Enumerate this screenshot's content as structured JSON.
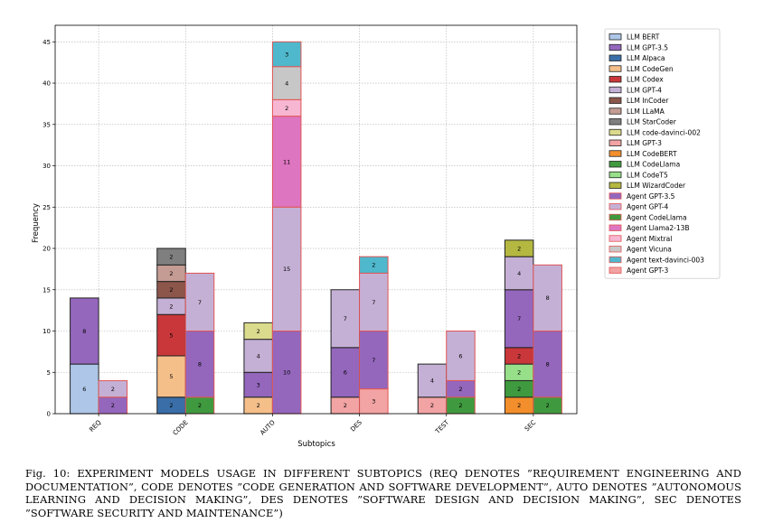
{
  "caption": "Fig. 10: EXPERIMENT MODELS USAGE IN DIFFERENT SUBTOPICS (REQ DENOTES ”REQUIREMENT ENGINEERING AND DOCUMENTATION”, CODE DENOTES ”CODE GENERATION AND SOFTWARE DEVELOPMENT”, AUTO DENOTES ”AUTONOMOUS LEARNING AND DECISION MAKING”, DES DENOTES ”SOFTWARE DESIGN AND DECISION MAKING”, SEC DENOTES ”SOFTWARE SECURITY AND MAINTENANCE”)",
  "chart_data": {
    "type": "bar",
    "stacked": true,
    "grouped": true,
    "xlabel": "Subtopics",
    "ylabel": "Frequency",
    "ylim": [
      0,
      47
    ],
    "yticks": [
      0,
      5,
      10,
      15,
      20,
      25,
      30,
      35,
      40,
      45
    ],
    "grid": true,
    "legend_position": "right",
    "categories": [
      "REQ",
      "CODE",
      "AUTO",
      "DES",
      "TEST",
      "SEC"
    ],
    "series": [
      {
        "name": "LLM BERT",
        "group": "LLM",
        "color": "#aec7e8",
        "values": [
          6,
          0,
          0,
          0,
          0,
          0
        ]
      },
      {
        "name": "LLM GPT-3.5",
        "group": "LLM",
        "color": "#9467bd",
        "values": [
          8,
          0,
          3,
          6,
          0,
          7
        ]
      },
      {
        "name": "LLM Alpaca",
        "group": "LLM",
        "color": "#3a6ea8",
        "values": [
          0,
          2,
          0,
          0,
          0,
          0
        ]
      },
      {
        "name": "LLM CodeGen",
        "group": "LLM",
        "color": "#f5bf8a",
        "values": [
          0,
          5,
          2,
          0,
          0,
          0
        ]
      },
      {
        "name": "LLM Codex",
        "group": "LLM",
        "color": "#c9373a",
        "values": [
          0,
          5,
          0,
          0,
          0,
          2
        ]
      },
      {
        "name": "LLM GPT-4",
        "group": "LLM",
        "color": "#c5b0d5",
        "values": [
          0,
          2,
          4,
          7,
          4,
          4
        ]
      },
      {
        "name": "LLM InCoder",
        "group": "LLM",
        "color": "#8c564b",
        "values": [
          0,
          2,
          0,
          0,
          0,
          0
        ]
      },
      {
        "name": "LLM LLaMA",
        "group": "LLM",
        "color": "#c49c94",
        "values": [
          0,
          2,
          0,
          0,
          0,
          0
        ]
      },
      {
        "name": "LLM StarCoder",
        "group": "LLM",
        "color": "#7f7f7f",
        "values": [
          0,
          2,
          0,
          0,
          0,
          0
        ]
      },
      {
        "name": "LLM code-davinci-002",
        "group": "LLM",
        "color": "#dbdb8d",
        "values": [
          0,
          0,
          2,
          0,
          0,
          0
        ]
      },
      {
        "name": "LLM GPT-3",
        "group": "LLM",
        "color": "#f2a3a3",
        "values": [
          0,
          0,
          0,
          2,
          2,
          0
        ]
      },
      {
        "name": "LLM CodeBERT",
        "group": "LLM",
        "color": "#f28e2b",
        "values": [
          0,
          0,
          0,
          0,
          0,
          2
        ]
      },
      {
        "name": "LLM CodeLlama",
        "group": "LLM",
        "color": "#3f9a3f",
        "values": [
          0,
          0,
          0,
          0,
          0,
          2
        ]
      },
      {
        "name": "LLM CodeT5",
        "group": "LLM",
        "color": "#98df8a",
        "values": [
          0,
          0,
          0,
          0,
          0,
          2
        ]
      },
      {
        "name": "LLM WizardCoder",
        "group": "LLM",
        "color": "#b5b840",
        "values": [
          0,
          0,
          0,
          0,
          0,
          2
        ]
      },
      {
        "name": "Agent GPT-3.5",
        "group": "Agent",
        "color": "#9467bd",
        "values": [
          2,
          8,
          10,
          7,
          2,
          8
        ]
      },
      {
        "name": "Agent GPT-4",
        "group": "Agent",
        "color": "#c5b0d5",
        "values": [
          2,
          7,
          15,
          7,
          6,
          8
        ]
      },
      {
        "name": "Agent CodeLlama",
        "group": "Agent",
        "color": "#3f9a3f",
        "values": [
          0,
          2,
          0,
          0,
          2,
          2
        ]
      },
      {
        "name": "Agent Llama2-13B",
        "group": "Agent",
        "color": "#de75c0",
        "values": [
          0,
          0,
          11,
          0,
          0,
          0
        ]
      },
      {
        "name": "Agent Mixtral",
        "group": "Agent",
        "color": "#f7b6d2",
        "values": [
          0,
          0,
          2,
          0,
          0,
          0
        ]
      },
      {
        "name": "Agent Vicuna",
        "group": "Agent",
        "color": "#c7c7c7",
        "values": [
          0,
          0,
          4,
          0,
          0,
          0
        ]
      },
      {
        "name": "Agent text-davinci-003",
        "group": "Agent",
        "color": "#4fb8cc",
        "values": [
          0,
          0,
          3,
          2,
          0,
          0
        ]
      },
      {
        "name": "Agent GPT-3",
        "group": "Agent",
        "color": "#f2a3a3",
        "values": [
          0,
          0,
          0,
          3,
          0,
          0
        ]
      }
    ],
    "stack_order": {
      "LLM": [
        [
          "LLM BERT",
          "LLM GPT-3.5"
        ],
        [
          "LLM Alpaca",
          "LLM CodeGen",
          "LLM Codex",
          "LLM GPT-4",
          "LLM InCoder",
          "LLM LLaMA",
          "LLM StarCoder"
        ],
        [
          "LLM CodeGen",
          "LLM GPT-3.5",
          "LLM GPT-4",
          "LLM code-davinci-002"
        ],
        [
          "LLM GPT-3",
          "LLM GPT-3.5",
          "LLM GPT-4"
        ],
        [
          "LLM GPT-3",
          "LLM GPT-4"
        ],
        [
          "LLM CodeBERT",
          "LLM CodeLlama",
          "LLM CodeT5",
          "LLM Codex",
          "LLM GPT-3.5",
          "LLM GPT-4",
          "LLM WizardCoder"
        ]
      ],
      "Agent": [
        [
          "Agent GPT-3.5",
          "Agent GPT-4"
        ],
        [
          "Agent CodeLlama",
          "Agent GPT-3.5",
          "Agent GPT-4"
        ],
        [
          "Agent GPT-3.5",
          "Agent GPT-4",
          "Agent Llama2-13B",
          "Agent Mixtral",
          "Agent Vicuna",
          "Agent text-davinci-003"
        ],
        [
          "Agent GPT-3",
          "Agent GPT-3.5",
          "Agent GPT-4",
          "Agent text-davinci-003"
        ],
        [
          "Agent CodeLlama",
          "Agent GPT-3.5",
          "Agent GPT-4"
        ],
        [
          "Agent CodeLlama",
          "Agent GPT-3.5",
          "Agent GPT-4"
        ]
      ]
    },
    "edge_colors": {
      "LLM": "#222222",
      "Agent": "#e05555"
    }
  }
}
